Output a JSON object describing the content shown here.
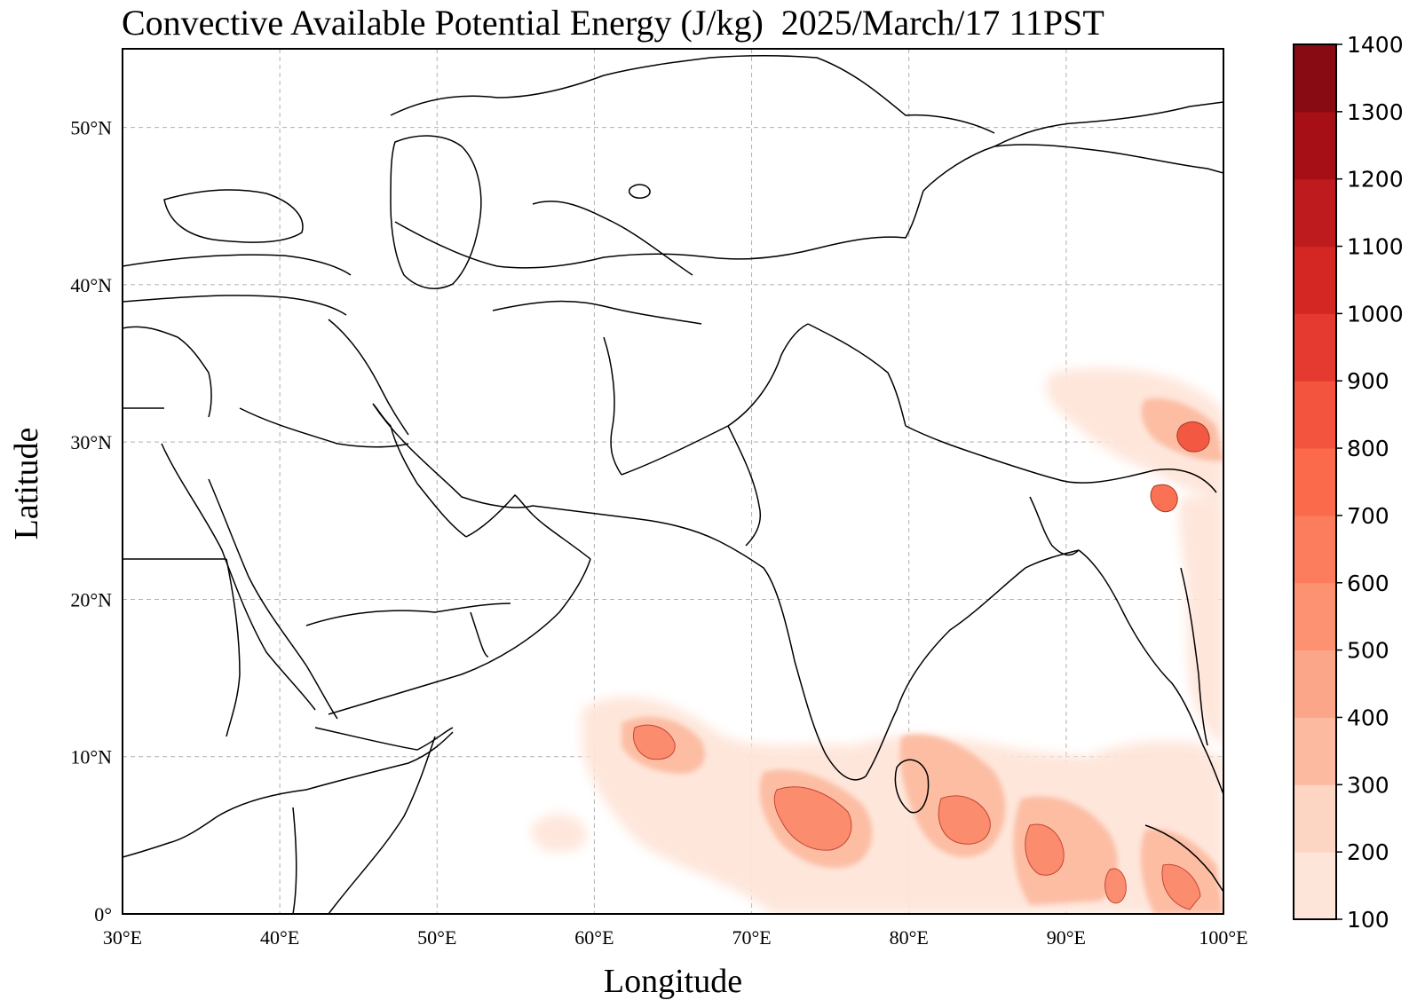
{
  "title": "Convective Available Potential Energy (J/kg)  2025/March/17 11PST",
  "xlabel": "Longitude",
  "ylabel": "Latitude",
  "lon_ticks": [
    "30°E",
    "40°E",
    "50°E",
    "60°E",
    "70°E",
    "80°E",
    "90°E",
    "100°E"
  ],
  "lat_ticks": [
    "0°",
    "10°N",
    "20°N",
    "30°N",
    "40°N",
    "50°N"
  ],
  "colorbar": {
    "levels": [
      "100",
      "200",
      "300",
      "400",
      "500",
      "600",
      "700",
      "800",
      "900",
      "1000",
      "1100",
      "1200",
      "1300",
      "1400"
    ],
    "colors": [
      "#fee5d9",
      "#fdd5c3",
      "#fcbba1",
      "#fca689",
      "#fc9272",
      "#fb7d5d",
      "#fb6a4a",
      "#f3543d",
      "#e53a2f",
      "#d42723",
      "#bd1b1e",
      "#a50f15",
      "#880a12",
      "#67000d"
    ]
  },
  "chart_data": {
    "type": "heatmap",
    "title": "Convective Available Potential Energy (J/kg)  2025/March/17 11PST",
    "xlabel": "Longitude",
    "ylabel": "Latitude",
    "xlim": [
      30,
      100
    ],
    "ylim": [
      0,
      55
    ],
    "unit": "J/kg",
    "grid": true,
    "levels": [
      100,
      200,
      300,
      400,
      500,
      600,
      700,
      800,
      900,
      1000,
      1100,
      1200,
      1300,
      1400
    ],
    "regions": [
      {
        "lon": 73.5,
        "lat": 5.5,
        "value": 650
      },
      {
        "lon": 84.5,
        "lat": 5.0,
        "value": 550
      },
      {
        "lon": 88.5,
        "lat": 5.5,
        "value": 650
      },
      {
        "lon": 91.5,
        "lat": 2.5,
        "value": 600
      },
      {
        "lon": 65.5,
        "lat": 11.5,
        "value": 550
      },
      {
        "lon": 62.0,
        "lat": 12.5,
        "value": 350
      },
      {
        "lon": 98.0,
        "lat": 31.0,
        "value": 900
      },
      {
        "lon": 96.5,
        "lat": 26.5,
        "value": 750
      },
      {
        "lon": 98.5,
        "lat": 3.0,
        "value": 600
      },
      {
        "lon": 82.0,
        "lat": 9.5,
        "value": 350
      },
      {
        "lon": 97.0,
        "lat": 20.0,
        "value": 300
      },
      {
        "lon": 57.0,
        "lat": 6.0,
        "value": 200
      }
    ]
  }
}
